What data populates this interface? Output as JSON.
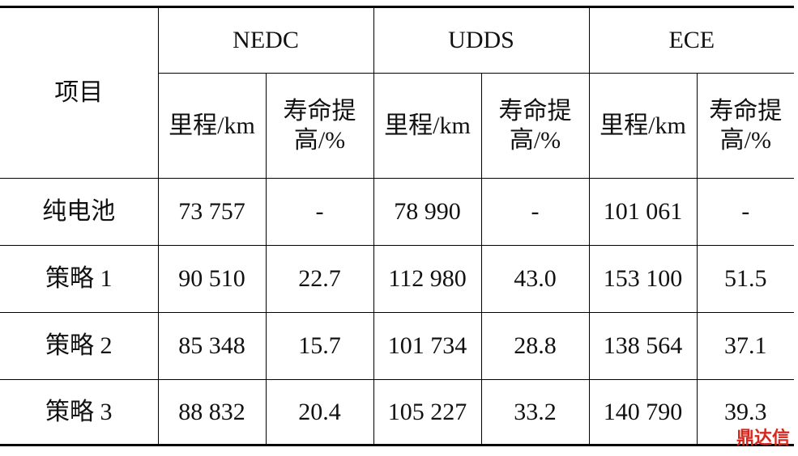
{
  "table": {
    "header": {
      "item": "项目",
      "groups": [
        "NEDC",
        "UDDS",
        "ECE"
      ],
      "sub": [
        "里程/km",
        "寿命提高/%"
      ]
    },
    "rows": [
      [
        "纯电池",
        "73 757",
        "-",
        "78 990",
        "-",
        "101 061",
        "-"
      ],
      [
        "策略 1",
        "90 510",
        "22.7",
        "112 980",
        "43.0",
        "153 100",
        "51.5"
      ],
      [
        "策略 2",
        "85 348",
        "15.7",
        "101 734",
        "28.8",
        "138 564",
        "37.1"
      ],
      [
        "策略 3",
        "88 832",
        "20.4",
        "105 227",
        "33.2",
        "140 790",
        "39.3"
      ]
    ]
  },
  "watermark": "鼎达信"
}
